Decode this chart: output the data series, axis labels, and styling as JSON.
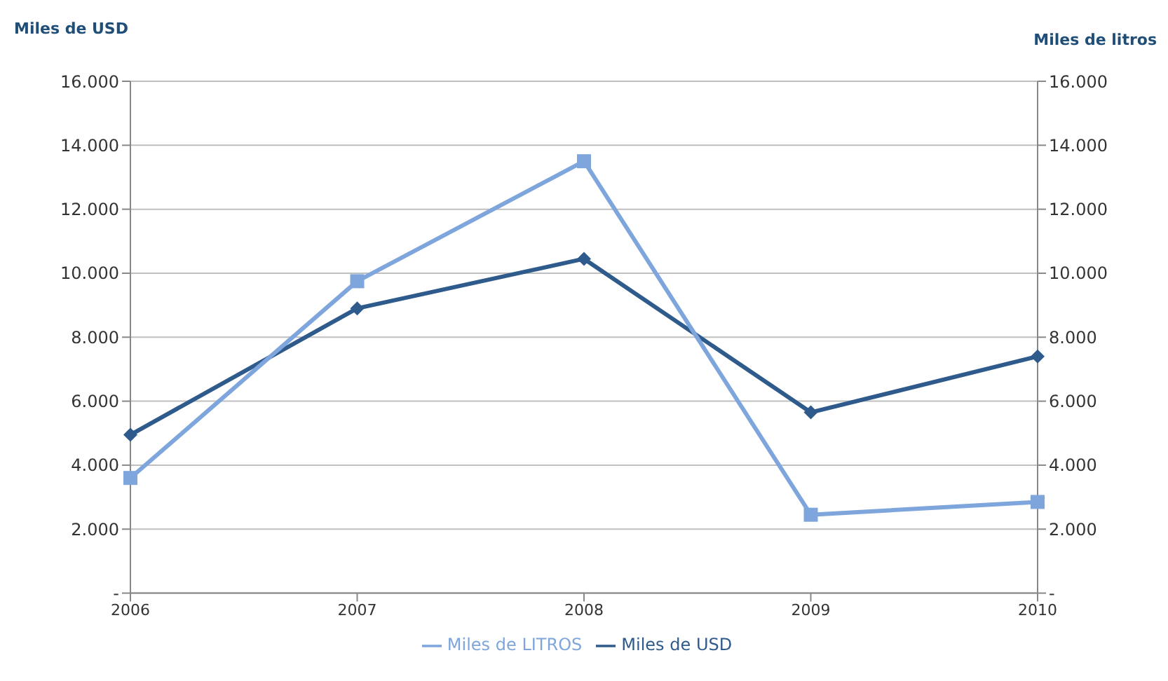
{
  "chart_data": {
    "type": "line",
    "categories": [
      "2006",
      "2007",
      "2008",
      "2009",
      "2010"
    ],
    "ylabel": "Miles de USD",
    "y2label": "Miles de litros",
    "series": [
      {
        "name": "Miles de USD",
        "color": "#2e5b8c",
        "marker": "diamond",
        "values": [
          4950,
          8900,
          10450,
          5650,
          7400
        ]
      },
      {
        "name": "Miles de LITROS",
        "color": "#7ea6dc",
        "marker": "square",
        "axis": "y2",
        "values": [
          3600,
          9750,
          13500,
          2450,
          2850
        ]
      }
    ],
    "ylim": [
      0,
      16000
    ],
    "yticks": [
      {
        "value": 0,
        "label": "-"
      },
      {
        "value": 2000,
        "label": "2.000"
      },
      {
        "value": 4000,
        "label": "4.000"
      },
      {
        "value": 6000,
        "label": "6.000"
      },
      {
        "value": 8000,
        "label": "8.000"
      },
      {
        "value": 10000,
        "label": "10.000"
      },
      {
        "value": 12000,
        "label": "12.000"
      },
      {
        "value": 14000,
        "label": "14.000"
      },
      {
        "value": 16000,
        "label": "16.000"
      }
    ],
    "y2lim": [
      0,
      16000
    ],
    "y2ticks": [
      {
        "value": 0,
        "label": "-"
      },
      {
        "value": 2000,
        "label": "2.000"
      },
      {
        "value": 4000,
        "label": "4.000"
      },
      {
        "value": 6000,
        "label": "6.000"
      },
      {
        "value": 8000,
        "label": "8.000"
      },
      {
        "value": 10000,
        "label": "10.000"
      },
      {
        "value": 12000,
        "label": "12.000"
      },
      {
        "value": 14000,
        "label": "14.000"
      },
      {
        "value": 16000,
        "label": "16.000"
      }
    ],
    "grid": "y",
    "legend": "bottom"
  }
}
